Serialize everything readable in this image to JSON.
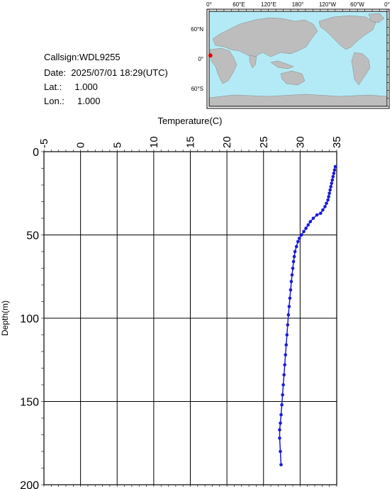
{
  "station": {
    "callsign": "Callsign:WDL9255",
    "date": "Date:  2025/07/01 18:29(UTC)",
    "lat": "Lat.:     1.000",
    "lon": "Lon.:     1.000"
  },
  "map": {
    "top_ticks": [
      "0°",
      "60°E",
      "120°E",
      "180°",
      "120°W",
      "60°W",
      "0°"
    ],
    "lat_ticks": [
      "60°N",
      "0°",
      "60°S"
    ],
    "ocean_color": "#b4eaf5",
    "land_color": "#bdbdbd",
    "marker": {
      "lon": 1.0,
      "lat": 1.0,
      "color": "#e00000"
    }
  },
  "chart_data": {
    "type": "line",
    "title": "",
    "xlabel": "Temperature(C)",
    "ylabel": "Depth(m)",
    "xlim": [
      -5,
      35
    ],
    "ylim": [
      0,
      200
    ],
    "y_inverted": true,
    "x_ticks": [
      "-5",
      "0",
      "5",
      "10",
      "15",
      "20",
      "25",
      "30",
      "35"
    ],
    "y_ticks": [
      "0",
      "50",
      "100",
      "150",
      "200"
    ],
    "grid": true,
    "color": "#1a1adc",
    "series": [
      {
        "x": [
          34.8,
          34.7,
          34.6,
          34.5,
          34.4,
          34.3,
          34.2,
          34.1,
          34.0,
          33.9,
          33.8,
          33.6,
          33.4,
          33.1,
          32.8,
          32.3,
          31.8,
          31.4,
          31.1,
          30.8,
          30.5,
          30.2,
          29.9,
          29.7,
          29.5,
          29.3,
          29.2,
          29.1,
          29.0,
          28.9,
          28.8,
          28.7,
          28.6,
          28.5,
          28.4,
          28.3,
          28.2,
          28.1,
          28.0,
          27.9,
          27.8,
          27.7,
          27.6,
          27.5,
          27.4,
          27.3,
          27.2,
          27.2,
          27.3,
          27.4
        ],
        "y": [
          9,
          11,
          13,
          15,
          17,
          19,
          21,
          23,
          25,
          27,
          29,
          31,
          33,
          35,
          37,
          38,
          40,
          42,
          44,
          46,
          48,
          50,
          52,
          54,
          57,
          60,
          63,
          66,
          70,
          74,
          78,
          83,
          88,
          93,
          98,
          104,
          110,
          116,
          122,
          128,
          134,
          140,
          146,
          152,
          158,
          163,
          167,
          172,
          180,
          188
        ]
      }
    ]
  }
}
